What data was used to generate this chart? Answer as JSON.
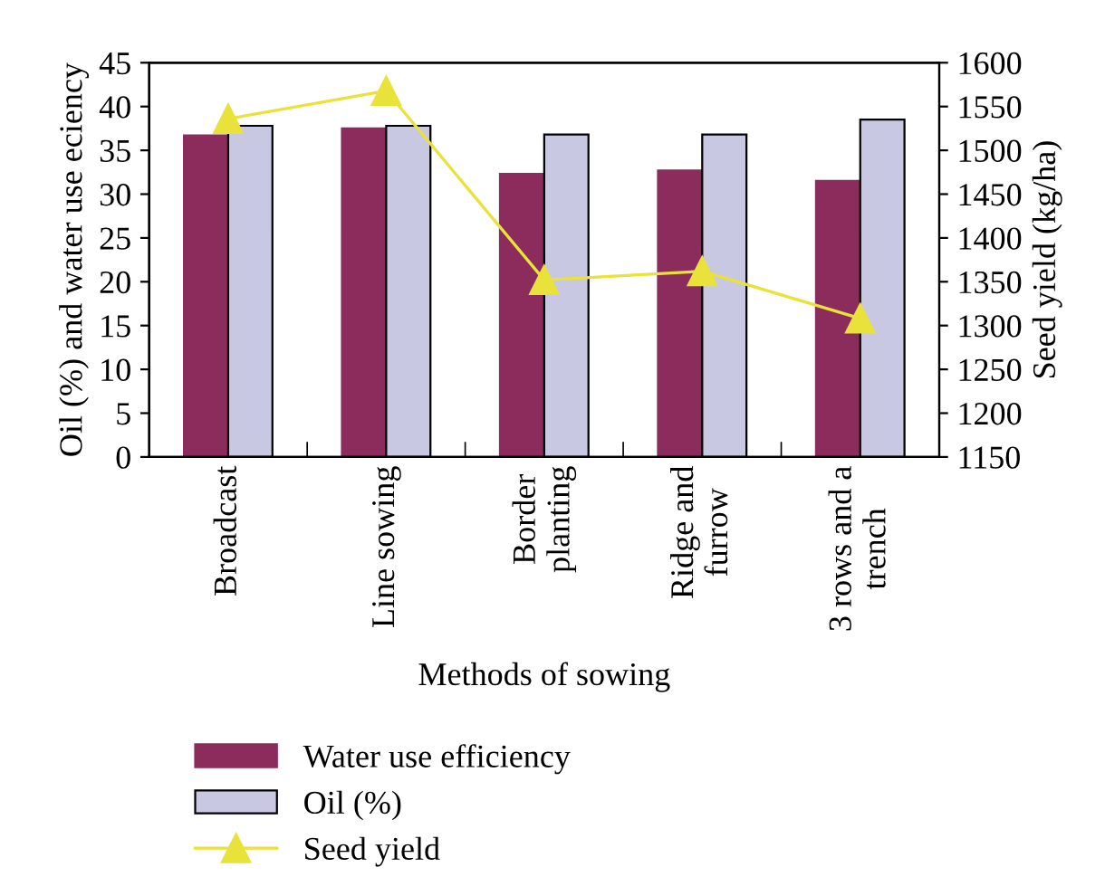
{
  "chart_data": {
    "type": "bar",
    "xlabel": "Methods of sowing",
    "ylabel": "Oil (%) and water use eciency",
    "y2label": "Seed yield (kg/ha)",
    "categories": [
      "Broadcast",
      "Line sowing",
      "Border\nplanting",
      "Ridge and\nfurrow",
      "3 rows and a\ntrench"
    ],
    "series": [
      {
        "name": "Water use efficiency",
        "color": "#8b2c5c",
        "values": [
          36.7,
          37.5,
          32.3,
          32.7,
          31.5
        ]
      },
      {
        "name": "Oil (%)",
        "color": "#c8c8e2",
        "values": [
          37.8,
          37.8,
          36.8,
          36.8,
          38.5
        ]
      },
      {
        "name": "Seed yield",
        "type": "line",
        "axis": "y2",
        "color": "#e8e23a",
        "marker": "triangle",
        "values": [
          1536,
          1568,
          1352,
          1362,
          1308
        ]
      }
    ],
    "ylim": [
      0,
      45
    ],
    "yticks": [
      0,
      5,
      10,
      15,
      20,
      25,
      30,
      35,
      40,
      45
    ],
    "y2lim": [
      1150,
      1600
    ],
    "y2ticks": [
      1150,
      1200,
      1250,
      1300,
      1350,
      1400,
      1450,
      1500,
      1550,
      1600
    ],
    "grid": false,
    "legend": "bottom"
  }
}
